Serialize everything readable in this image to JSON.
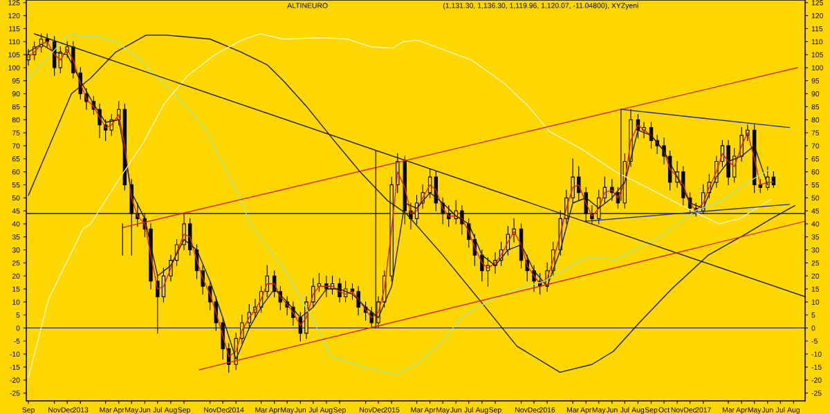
{
  "chart_data": {
    "type": "candlestick",
    "title": "ALTINEURO",
    "subtitle": "(1,131.30, 1,136.30, 1,119.96, 1,120.07, -11.04800), XYZyeni",
    "x": [
      "2012-09-01",
      "2012-09-15",
      "2012-10-01",
      "2012-10-15",
      "2012-11-01",
      "2012-11-15",
      "2012-12-01",
      "2012-12-15",
      "2013-01-01",
      "2013-01-15",
      "2013-02-01",
      "2013-02-15",
      "2013-03-01",
      "2013-03-15",
      "2013-04-01",
      "2013-04-15",
      "2013-05-01",
      "2013-05-15",
      "2013-06-01",
      "2013-06-15",
      "2013-07-01",
      "2013-07-15",
      "2013-08-01",
      "2013-08-15",
      "2013-09-01",
      "2013-09-15",
      "2013-10-01",
      "2013-10-15",
      "2013-11-01",
      "2013-11-15",
      "2013-12-01",
      "2013-12-15",
      "2014-01-01",
      "2014-01-15",
      "2014-02-01",
      "2014-02-15",
      "2014-03-01",
      "2014-03-15",
      "2014-04-01",
      "2014-04-15",
      "2014-05-01",
      "2014-05-15",
      "2014-06-01",
      "2014-06-15",
      "2014-07-01",
      "2014-07-15",
      "2014-08-01",
      "2014-08-15",
      "2014-09-01",
      "2014-09-15",
      "2014-10-01",
      "2014-10-15",
      "2014-11-01",
      "2014-11-15",
      "2014-12-01",
      "2014-12-15",
      "2015-01-01",
      "2015-01-15",
      "2015-02-01",
      "2015-02-15",
      "2015-03-01",
      "2015-03-15",
      "2015-04-01",
      "2015-04-15",
      "2015-05-01",
      "2015-05-15",
      "2015-06-01",
      "2015-06-15",
      "2015-07-01",
      "2015-07-15",
      "2015-08-01",
      "2015-08-15",
      "2015-09-01",
      "2015-09-15",
      "2015-10-01",
      "2015-10-15",
      "2015-11-01",
      "2015-11-15",
      "2015-12-01",
      "2015-12-15",
      "2016-01-01",
      "2016-01-15",
      "2016-02-01",
      "2016-02-15",
      "2016-03-01",
      "2016-03-15",
      "2016-04-01",
      "2016-04-15",
      "2016-05-01",
      "2016-05-15",
      "2016-06-01",
      "2016-06-15",
      "2016-07-01",
      "2016-07-15",
      "2016-08-01",
      "2016-08-15",
      "2016-09-01",
      "2016-09-15",
      "2016-10-01",
      "2016-10-15",
      "2016-11-01",
      "2016-11-15",
      "2016-12-01",
      "2016-12-15",
      "2017-01-01",
      "2017-01-15",
      "2017-02-01",
      "2017-02-15",
      "2017-03-01",
      "2017-03-15",
      "2017-04-01",
      "2017-04-15",
      "2017-05-01",
      "2017-05-15",
      "2017-06-01",
      "2017-06-15"
    ],
    "ohlc": [
      [
        103,
        107,
        101,
        105
      ],
      [
        105,
        110,
        103,
        108
      ],
      [
        108,
        113,
        106,
        111
      ],
      [
        111,
        113,
        108,
        110
      ],
      [
        110,
        112,
        97,
        100
      ],
      [
        100,
        108,
        98,
        106
      ],
      [
        106,
        110,
        104,
        108
      ],
      [
        108,
        110,
        96,
        98
      ],
      [
        98,
        100,
        88,
        90
      ],
      [
        90,
        92,
        84,
        87
      ],
      [
        87,
        89,
        82,
        84
      ],
      [
        84,
        86,
        73,
        78
      ],
      [
        78,
        80,
        72,
        76
      ],
      [
        76,
        82,
        74,
        80
      ],
      [
        80,
        87,
        78,
        84
      ],
      [
        84,
        86,
        53,
        55
      ],
      [
        55,
        57,
        28,
        44
      ],
      [
        44,
        48,
        39,
        42
      ],
      [
        42,
        44,
        35,
        38
      ],
      [
        38,
        40,
        15,
        18
      ],
      [
        18,
        20,
        -2,
        12
      ],
      [
        12,
        23,
        10,
        20
      ],
      [
        20,
        28,
        18,
        26
      ],
      [
        26,
        34,
        24,
        32
      ],
      [
        32,
        44,
        30,
        40
      ],
      [
        40,
        42,
        28,
        30
      ],
      [
        30,
        32,
        19,
        22
      ],
      [
        22,
        24,
        13,
        16
      ],
      [
        16,
        18,
        7,
        10
      ],
      [
        10,
        12,
        -1,
        2
      ],
      [
        2,
        4,
        -12,
        -8
      ],
      [
        -8,
        -6,
        -17,
        -14
      ],
      [
        -14,
        -2,
        -16,
        -4
      ],
      [
        -4,
        5,
        -6,
        2
      ],
      [
        2,
        9,
        0,
        6
      ],
      [
        6,
        11,
        4,
        8
      ],
      [
        8,
        16,
        6,
        14
      ],
      [
        14,
        24,
        12,
        20
      ],
      [
        20,
        22,
        12,
        14
      ],
      [
        14,
        16,
        7,
        10
      ],
      [
        10,
        12,
        5,
        8
      ],
      [
        8,
        10,
        1,
        4
      ],
      [
        4,
        6,
        -5,
        -2
      ],
      [
        -2,
        12,
        -4,
        10
      ],
      [
        10,
        19,
        8,
        16
      ],
      [
        16,
        21,
        14,
        17
      ],
      [
        17,
        20,
        12,
        15
      ],
      [
        15,
        20,
        13,
        17
      ],
      [
        17,
        19,
        10,
        12
      ],
      [
        12,
        18,
        10,
        15
      ],
      [
        15,
        17,
        11,
        14
      ],
      [
        14,
        16,
        5,
        8
      ],
      [
        8,
        10,
        3,
        6
      ],
      [
        6,
        8,
        0,
        2
      ],
      [
        2,
        12,
        0,
        10
      ],
      [
        10,
        22,
        8,
        20
      ],
      [
        20,
        58,
        18,
        55
      ],
      [
        55,
        67,
        52,
        64
      ],
      [
        64,
        66,
        40,
        45
      ],
      [
        45,
        48,
        38,
        42
      ],
      [
        42,
        51,
        40,
        48
      ],
      [
        48,
        55,
        46,
        52
      ],
      [
        52,
        61,
        50,
        58
      ],
      [
        58,
        60,
        45,
        48
      ],
      [
        48,
        50,
        40,
        44
      ],
      [
        44,
        47,
        39,
        42
      ],
      [
        42,
        49,
        40,
        45
      ],
      [
        45,
        47,
        36,
        40
      ],
      [
        40,
        42,
        31,
        34
      ],
      [
        34,
        36,
        24,
        28
      ],
      [
        28,
        30,
        18,
        22
      ],
      [
        22,
        27,
        16,
        24
      ],
      [
        24,
        29,
        21,
        26
      ],
      [
        26,
        33,
        24,
        30
      ],
      [
        30,
        39,
        28,
        36
      ],
      [
        36,
        42,
        33,
        38
      ],
      [
        38,
        40,
        23,
        26
      ],
      [
        26,
        28,
        18,
        22
      ],
      [
        22,
        24,
        14,
        18
      ],
      [
        18,
        21,
        13,
        16
      ],
      [
        16,
        25,
        14,
        22
      ],
      [
        22,
        33,
        20,
        30
      ],
      [
        30,
        45,
        28,
        42
      ],
      [
        42,
        53,
        40,
        50
      ],
      [
        50,
        65,
        48,
        58
      ],
      [
        58,
        62,
        49,
        52
      ],
      [
        52,
        54,
        41,
        44
      ],
      [
        44,
        47,
        40,
        42
      ],
      [
        42,
        53,
        40,
        50
      ],
      [
        50,
        58,
        48,
        54
      ],
      [
        54,
        57,
        49,
        52
      ],
      [
        52,
        54,
        46,
        48
      ],
      [
        48,
        67,
        46,
        64
      ],
      [
        64,
        84,
        62,
        80
      ],
      [
        80,
        82,
        73,
        76
      ],
      [
        76,
        79,
        73,
        77
      ],
      [
        77,
        79,
        69,
        72
      ],
      [
        72,
        74,
        67,
        70
      ],
      [
        70,
        73,
        63,
        66
      ],
      [
        66,
        68,
        53,
        56
      ],
      [
        56,
        64,
        54,
        60
      ],
      [
        60,
        62,
        47,
        50
      ],
      [
        50,
        52,
        44,
        46
      ],
      [
        46,
        48,
        43,
        45
      ],
      [
        45,
        55,
        44,
        52
      ],
      [
        52,
        59,
        50,
        56
      ],
      [
        56,
        66,
        54,
        64
      ],
      [
        64,
        72,
        62,
        70
      ],
      [
        70,
        72,
        55,
        58
      ],
      [
        58,
        69,
        56,
        66
      ],
      [
        66,
        77,
        64,
        74
      ],
      [
        74,
        78,
        72,
        76
      ],
      [
        76,
        78,
        52,
        55
      ],
      [
        55,
        57,
        52,
        54
      ],
      [
        54,
        62,
        53,
        58
      ],
      [
        58,
        60,
        54,
        55
      ]
    ],
    "series": [
      {
        "type": "line",
        "color": "#e02020",
        "values": [
          104,
          106,
          109,
          110,
          105,
          103,
          107,
          103,
          94,
          88,
          85,
          81,
          77,
          78,
          82,
          70,
          50,
          43,
          40,
          28,
          15,
          16,
          23,
          29,
          36,
          35,
          26,
          19,
          13,
          6,
          -3,
          -11,
          -9,
          -1,
          4,
          7,
          11,
          17,
          17,
          12,
          9,
          6,
          1,
          4,
          13,
          16,
          16,
          16,
          14,
          13,
          14,
          11,
          7,
          4,
          6,
          15,
          38,
          60,
          54,
          44,
          45,
          50,
          55,
          53,
          46,
          43,
          43,
          42,
          37,
          31,
          25,
          23,
          25,
          28,
          33,
          37,
          32,
          24,
          20,
          17,
          19,
          26,
          36,
          46,
          54,
          55,
          48,
          43,
          46,
          52,
          53,
          50,
          56,
          72,
          78,
          76,
          74,
          71,
          68,
          61,
          58,
          55,
          48,
          45,
          48,
          54,
          60,
          67,
          64,
          62,
          70,
          75,
          65,
          55,
          56,
          56
        ]
      },
      {
        "type": "line",
        "color": "#1a1a1a",
        "x": [
          "2012-09-01",
          "2012-10-01",
          "2012-11-01",
          "2012-12-01",
          "2013-01-01",
          "2013-02-01",
          "2013-03-01",
          "2013-04-01",
          "2013-05-01",
          "2013-06-01",
          "2013-07-01",
          "2013-08-01",
          "2013-09-01",
          "2013-10-01",
          "2013-11-01",
          "2013-12-01",
          "2014-01-01",
          "2014-02-01",
          "2014-03-01",
          "2014-04-01",
          "2014-05-01",
          "2014-06-01",
          "2014-07-01",
          "2014-08-01",
          "2014-09-01",
          "2014-10-01",
          "2014-11-01",
          "2014-12-01",
          "2015-01-01",
          "2015-02-01",
          "2015-03-01",
          "2015-04-01",
          "2015-05-01",
          "2015-06-01",
          "2015-07-01",
          "2015-08-01",
          "2015-09-01",
          "2015-10-01",
          "2015-11-01",
          "2015-12-01",
          "2016-01-01",
          "2016-02-01",
          "2016-03-01",
          "2016-04-01",
          "2016-05-01",
          "2016-06-01",
          "2016-07-01",
          "2016-08-01",
          "2016-09-01",
          "2016-10-01",
          "2016-11-01",
          "2016-12-01",
          "2017-01-01",
          "2017-02-01",
          "2017-03-01",
          "2017-04-01",
          "2017-05-01",
          "2017-06-01"
        ],
        "values": [
          106,
          109,
          106,
          105,
          95,
          86,
          79,
          80,
          52,
          42,
          20,
          24,
          34,
          30,
          18,
          4,
          -12,
          0,
          8,
          15,
          10,
          4,
          8,
          15,
          15,
          13,
          8,
          4,
          16,
          48,
          46,
          52,
          48,
          43,
          40,
          28,
          24,
          30,
          32,
          22,
          16,
          30,
          48,
          50,
          46,
          50,
          56,
          76,
          74,
          68,
          58,
          48,
          46,
          58,
          64,
          66,
          70,
          55
        ]
      },
      {
        "type": "line",
        "color": "#1a1a1a",
        "x": [
          "2012-09-01",
          "2012-12-11",
          "2013-01-25",
          "2013-03-25",
          "2013-06-04",
          "2013-07-22",
          "2013-11-01",
          "2014-01-13",
          "2014-03-16",
          "2014-04-22",
          "2014-06-16",
          "2014-08-19",
          "2014-10-19",
          "2014-12-22",
          "2015-02-04",
          "2015-05-01",
          "2015-07-25",
          "2015-10-22",
          "2016-01-31",
          "2016-04-15",
          "2016-06-04",
          "2016-08-04",
          "2016-10-19",
          "2017-01-13",
          "2017-04-10",
          "2017-06-10",
          "2017-08-04"
        ],
        "values": [
          51,
          90,
          96,
          106,
          112.5,
          112.5,
          111,
          106,
          101,
          95,
          85,
          72,
          60,
          49,
          44,
          28,
          11,
          -7,
          -17,
          -14,
          -9,
          2,
          15,
          28,
          36,
          42,
          47
        ]
      },
      {
        "type": "line",
        "color": "#a8e6a0",
        "x": [
          "2012-09-01",
          "2012-10-22",
          "2012-12-06",
          "2013-01-07",
          "2013-02-09",
          "2013-03-25",
          "2013-05-21",
          "2013-07-10",
          "2013-09-01",
          "2013-10-19",
          "2013-12-01",
          "2014-01-13",
          "2014-02-03",
          "2014-04-22",
          "2014-06-24",
          "2014-08-13",
          "2014-10-28",
          "2015-01-10",
          "2015-02-28",
          "2015-05-01",
          "2015-06-19",
          "2015-09-16",
          "2015-12-25",
          "2016-04-01",
          "2016-05-09",
          "2016-06-04",
          "2016-09-13",
          "2016-12-13",
          "2017-02-15",
          "2017-04-16",
          "2017-06-06"
        ],
        "values": [
          96,
          105,
          113,
          112,
          112,
          110,
          103,
          95,
          86,
          77,
          63,
          49,
          40,
          23,
          5,
          -11,
          -15,
          -18,
          -14,
          -5,
          5,
          13,
          18,
          27,
          27,
          26,
          34,
          45,
          49,
          56,
          61
        ]
      },
      {
        "type": "line",
        "color": "#fff6cc",
        "x": [
          "2012-09-01",
          "2012-10-18",
          "2013-01-07",
          "2013-01-25",
          "2013-04-01",
          "2013-05-28",
          "2013-07-16",
          "2013-09-10",
          "2013-11-13",
          "2014-01-13",
          "2014-02-27",
          "2014-04-22",
          "2014-07-19",
          "2014-09-19",
          "2014-11-15",
          "2015-01-04",
          "2015-01-28",
          "2015-03-04",
          "2015-07-07",
          "2015-09-22",
          "2015-11-19",
          "2016-01-06",
          "2016-03-19",
          "2016-06-10",
          "2016-08-10",
          "2016-11-13",
          "2016-12-19",
          "2017-02-07",
          "2017-03-28",
          "2017-05-16",
          "2017-06-10"
        ],
        "values": [
          -19,
          11,
          38,
          40,
          57,
          71,
          86,
          97,
          105,
          110.5,
          113,
          111,
          111.5,
          111,
          108,
          107.5,
          110,
          110.5,
          103,
          94,
          85,
          75.5,
          69,
          60,
          55,
          47,
          44,
          40,
          42,
          47,
          49.5
        ]
      },
      {
        "type": "line",
        "color": "#1a1a1a",
        "x": [
          "2012-09-15",
          "2017-08-28"
        ],
        "values": [
          113,
          12
        ]
      },
      {
        "type": "line",
        "color": "#e81e1e",
        "x": [
          "2013-04-10",
          "2017-08-10"
        ],
        "values": [
          38.6,
          100
        ]
      },
      {
        "type": "line",
        "color": "#e81e1e",
        "x": [
          "2013-10-07",
          "2017-08-28"
        ],
        "values": [
          -16,
          41
        ]
      },
      {
        "type": "line",
        "color": "#1c2aa0",
        "x": [
          "2016-06-22",
          "2017-07-22"
        ],
        "values": [
          84,
          77
        ]
      },
      {
        "type": "line",
        "color": "#1c2aa0",
        "x": [
          "2016-03-29",
          "2017-07-22"
        ],
        "values": [
          41,
          47.5
        ]
      },
      {
        "type": "line",
        "color": "#1a1a1a",
        "x": [
          "2014-11-25",
          "2014-11-25"
        ],
        "values": [
          0,
          68
        ]
      },
      {
        "type": "line",
        "color": "#1a1a1a",
        "x": [
          "2016-06-22",
          "2016-06-22"
        ],
        "values": [
          84,
          49
        ]
      },
      {
        "type": "line",
        "color": "#1a1a1a",
        "x": [
          "2013-04-10",
          "2013-04-10"
        ],
        "values": [
          40,
          28
        ]
      }
    ],
    "ref_lines": [
      {
        "axis": "y",
        "value": 44,
        "color": "#000000"
      },
      {
        "axis": "y",
        "value": 0,
        "color": "#000000"
      }
    ],
    "xlim": [
      "2012-08-27",
      "2017-08-28"
    ],
    "xticks": [
      {
        "value": "2012-09-01",
        "label": "Sep"
      },
      {
        "value": "2012-11-01",
        "label": "Nov"
      },
      {
        "value": "2012-12-01",
        "label": "Dec"
      },
      {
        "value": "2013-01-01",
        "label": "2013"
      },
      {
        "value": "2013-03-01",
        "label": "Mar"
      },
      {
        "value": "2013-04-01",
        "label": "Apr"
      },
      {
        "value": "2013-05-01",
        "label": "May"
      },
      {
        "value": "2013-06-01",
        "label": "Jun"
      },
      {
        "value": "2013-07-01",
        "label": "Jul"
      },
      {
        "value": "2013-08-01",
        "label": "Aug"
      },
      {
        "value": "2013-09-01",
        "label": "Sep"
      },
      {
        "value": "2013-11-01",
        "label": "Nov"
      },
      {
        "value": "2013-12-01",
        "label": "Dec"
      },
      {
        "value": "2014-01-01",
        "label": "2014"
      },
      {
        "value": "2014-03-01",
        "label": "Mar"
      },
      {
        "value": "2014-04-01",
        "label": "Apr"
      },
      {
        "value": "2014-05-01",
        "label": "May"
      },
      {
        "value": "2014-06-01",
        "label": "Jun"
      },
      {
        "value": "2014-07-01",
        "label": "Jul"
      },
      {
        "value": "2014-08-01",
        "label": "Aug"
      },
      {
        "value": "2014-09-01",
        "label": "Sep"
      },
      {
        "value": "2014-11-01",
        "label": "Nov"
      },
      {
        "value": "2014-12-01",
        "label": "Dec"
      },
      {
        "value": "2015-01-01",
        "label": "2015"
      },
      {
        "value": "2015-03-01",
        "label": "Mar"
      },
      {
        "value": "2015-04-01",
        "label": "Apr"
      },
      {
        "value": "2015-05-01",
        "label": "May"
      },
      {
        "value": "2015-06-01",
        "label": "Jun"
      },
      {
        "value": "2015-07-01",
        "label": "Jul"
      },
      {
        "value": "2015-08-01",
        "label": "Aug"
      },
      {
        "value": "2015-09-01",
        "label": "Sep"
      },
      {
        "value": "2015-11-01",
        "label": "Nov"
      },
      {
        "value": "2015-12-01",
        "label": "Dec"
      },
      {
        "value": "2016-01-01",
        "label": "2016"
      },
      {
        "value": "2016-03-01",
        "label": "Mar"
      },
      {
        "value": "2016-04-01",
        "label": "Apr"
      },
      {
        "value": "2016-05-01",
        "label": "May"
      },
      {
        "value": "2016-06-01",
        "label": "Jun"
      },
      {
        "value": "2016-07-01",
        "label": "Jul"
      },
      {
        "value": "2016-08-01",
        "label": "Aug"
      },
      {
        "value": "2016-09-01",
        "label": "Sep"
      },
      {
        "value": "2016-10-01",
        "label": "Oct"
      },
      {
        "value": "2016-11-01",
        "label": "Nov"
      },
      {
        "value": "2016-12-01",
        "label": "Dec"
      },
      {
        "value": "2017-01-01",
        "label": "2017"
      },
      {
        "value": "2017-03-01",
        "label": "Mar"
      },
      {
        "value": "2017-04-01",
        "label": "Apr"
      },
      {
        "value": "2017-05-01",
        "label": "May"
      },
      {
        "value": "2017-06-01",
        "label": "Jun"
      },
      {
        "value": "2017-07-01",
        "label": "Jul"
      },
      {
        "value": "2017-08-01",
        "label": "Aug"
      }
    ],
    "ylim": [
      -28,
      126
    ],
    "yticks": [
      -25,
      -20,
      -15,
      -10,
      -5,
      0,
      5,
      10,
      15,
      20,
      25,
      30,
      35,
      40,
      45,
      50,
      55,
      60,
      65,
      70,
      75,
      80,
      85,
      90,
      95,
      100,
      105,
      110,
      115,
      120,
      125
    ],
    "y2lim": [
      -28,
      126
    ],
    "y2ticks": [
      -25,
      -20,
      -15,
      -10,
      -5,
      0,
      5,
      10,
      15,
      20,
      25,
      30,
      35,
      40,
      45,
      50,
      55,
      60,
      65,
      70,
      75,
      80,
      85,
      90,
      95,
      100,
      105,
      110,
      115,
      120,
      125
    ]
  }
}
